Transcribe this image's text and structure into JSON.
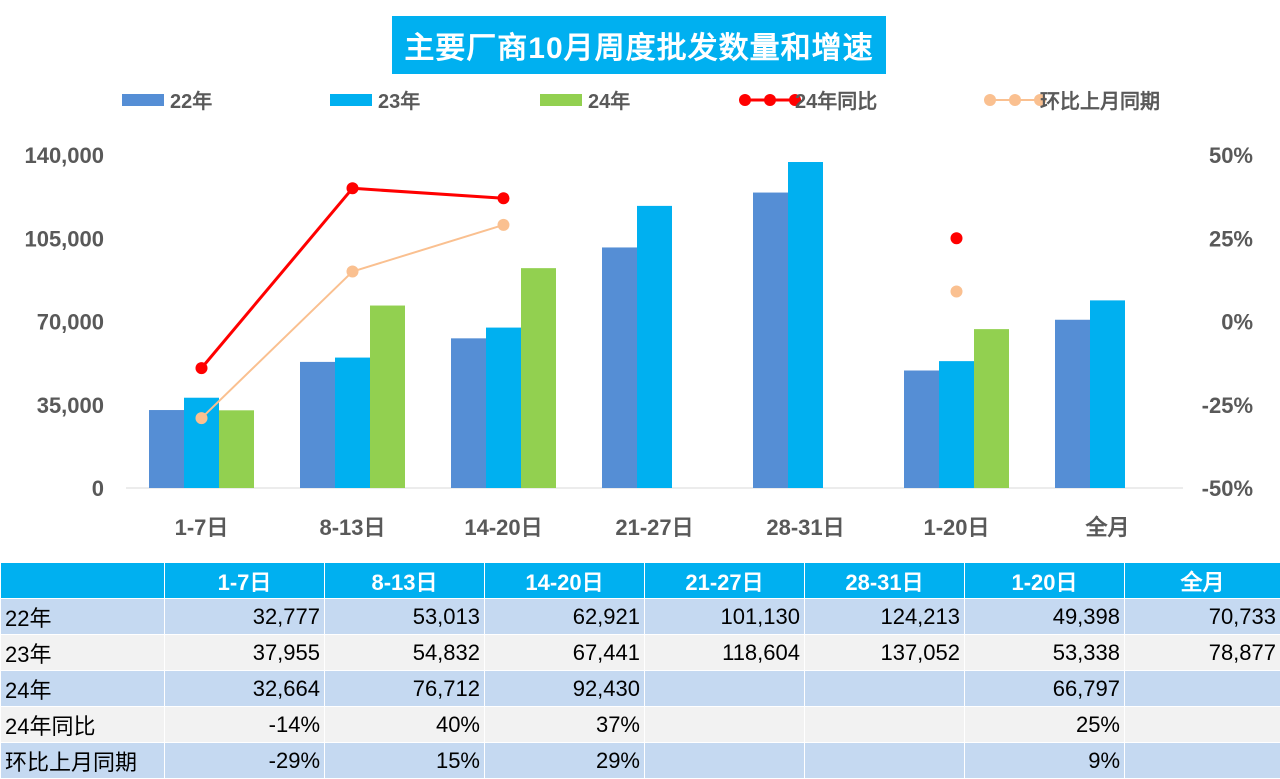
{
  "chart_data": {
    "type": "bar",
    "title": "主要厂商10月周度批发数量和增速",
    "categories": [
      "1-7日",
      "8-13日",
      "14-20日",
      "21-27日",
      "28-31日",
      "1-20日",
      "全月"
    ],
    "series": [
      {
        "name": "22年",
        "type": "bar",
        "color": "#558ED5",
        "values": [
          32777,
          53013,
          62921,
          101130,
          124213,
          49398,
          70733
        ]
      },
      {
        "name": "23年",
        "type": "bar",
        "color": "#00B0F0",
        "values": [
          37955,
          54832,
          67441,
          118604,
          137052,
          53338,
          78877
        ]
      },
      {
        "name": "24年",
        "type": "bar",
        "color": "#92D050",
        "values": [
          32664,
          76712,
          92430,
          null,
          null,
          66797,
          null
        ]
      },
      {
        "name": "24年同比",
        "type": "line",
        "axis": "right",
        "color": "#FF0000",
        "values": [
          -14,
          40,
          37,
          null,
          null,
          25,
          null
        ]
      },
      {
        "name": "环比上月同期",
        "type": "line",
        "axis": "right",
        "color": "#FAC090",
        "values": [
          -29,
          15,
          29,
          null,
          null,
          9,
          null
        ]
      }
    ],
    "ylim_left": [
      0,
      140000
    ],
    "yticks_left": [
      "0",
      "35,000",
      "70,000",
      "105,000",
      "140,000"
    ],
    "ylim_right": [
      -50,
      50
    ],
    "yticks_right": [
      "-50%",
      "-25%",
      "0%",
      "25%",
      "50%"
    ],
    "legend_position": "top",
    "grid": false
  },
  "table": {
    "header": [
      "",
      "1-7日",
      "8-13日",
      "14-20日",
      "21-27日",
      "28-31日",
      "1-20日",
      "全月"
    ],
    "rows": [
      [
        "22年",
        "32,777",
        "53,013",
        "62,921",
        "101,130",
        "124,213",
        "49,398",
        "70,733"
      ],
      [
        "23年",
        "37,955",
        "54,832",
        "67,441",
        "118,604",
        "137,052",
        "53,338",
        "78,877"
      ],
      [
        "24年",
        "32,664",
        "76,712",
        "92,430",
        "",
        "",
        "66,797",
        ""
      ],
      [
        "24年同比",
        "-14%",
        "40%",
        "37%",
        "",
        "",
        "25%",
        ""
      ],
      [
        "环比上月同期",
        "-29%",
        "15%",
        "29%",
        "",
        "",
        "9%",
        ""
      ]
    ]
  }
}
